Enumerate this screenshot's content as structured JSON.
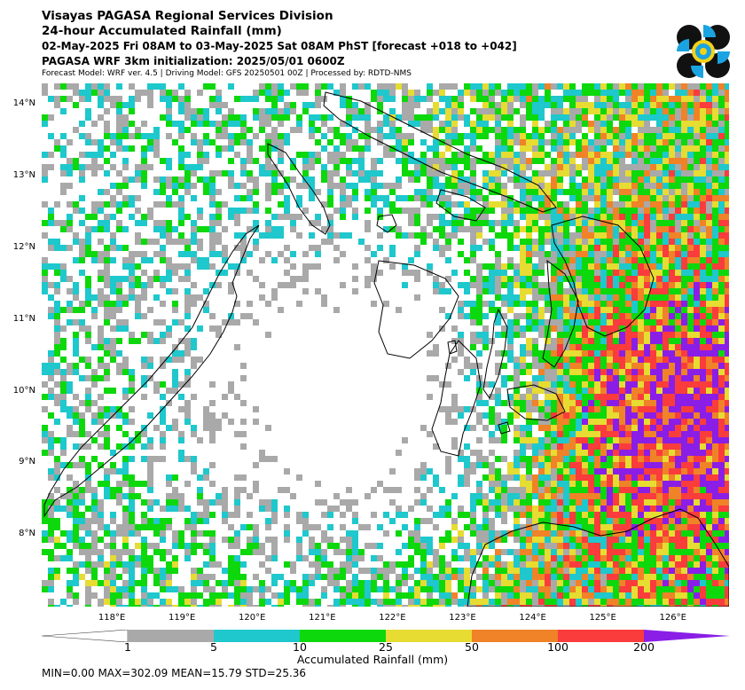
{
  "header": {
    "line1": "Visayas PAGASA Regional Services Division",
    "line2": "24-hour Accumulated Rainfall (mm)",
    "line3": "02-May-2025 Fri 08AM to 03-May-2025 Sat 08AM PhST [forecast +018 to +042]",
    "line4": "PAGASA WRF 3km initialization: 2025/05/01 0600Z",
    "line5": "Forecast Model: WRF ver. 4.5 | Driving Model: GFS 20250501 00Z | Processed by: RDTD-NMS"
  },
  "map": {
    "lat_labels": [
      "14°N",
      "13°N",
      "12°N",
      "11°N",
      "10°N",
      "9°N",
      "8°N"
    ],
    "lon_labels": [
      "118°E",
      "119°E",
      "120°E",
      "121°E",
      "122°E",
      "123°E",
      "124°E",
      "125°E",
      "126°E"
    ],
    "lon_range": [
      117.0,
      126.8
    ],
    "lat_range": [
      7.0,
      14.3
    ]
  },
  "colorbar": {
    "labels": [
      "1",
      "5",
      "10",
      "25",
      "50",
      "100",
      "200"
    ],
    "colors": [
      "#ffffff",
      "#a9a9a9",
      "#1ec8cc",
      "#0cd80c",
      "#e6dc32",
      "#f08228",
      "#fa3c3c",
      "#8a1ee6"
    ],
    "title": "Accumulated Rainfall (mm)"
  },
  "stats": {
    "text": "MIN=0.00   MAX=302.09   MEAN=15.79   STD=25.36",
    "min": 0.0,
    "max": 302.09,
    "mean": 15.79,
    "std": 25.36
  }
}
